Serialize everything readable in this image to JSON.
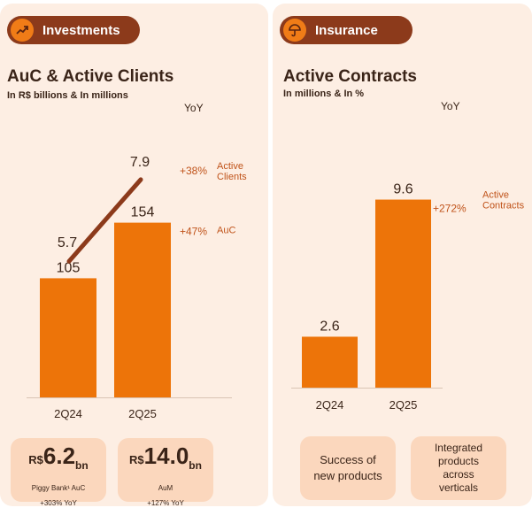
{
  "investments": {
    "badge_label": "Investments",
    "badge_icon": "trending-up-icon",
    "title": "AuC & Active Clients",
    "subtitle": "In R$ billions & In millions",
    "yoy_header": "YoY",
    "cards": [
      {
        "prefix": "R$",
        "value": "6.2",
        "unit": "bn",
        "label": "Piggy Bank¹ AuC",
        "change": "+303% YoY"
      },
      {
        "prefix": "R$",
        "value": "14.0",
        "unit": "bn",
        "label": "AuM",
        "change": "+127% YoY"
      }
    ]
  },
  "insurance": {
    "badge_label": "Insurance",
    "badge_icon": "umbrella-icon",
    "title": "Active Contracts",
    "subtitle": "In millions & In %",
    "yoy_header": "YoY",
    "cards": [
      {
        "text": "Success of new products"
      },
      {
        "text": "Integrated products across verticals"
      }
    ]
  },
  "colors": {
    "bar": "#ed7409",
    "line": "#8c3a1b",
    "pill": "#8c3a1b",
    "panel": "#fdeee3",
    "card": "#fbd7bd",
    "accent_text": "#c0531a"
  },
  "chart_data": [
    {
      "type": "bar",
      "title": "AuC & Active Clients",
      "subtitle": "In R$ billions & In millions",
      "categories": [
        "2Q24",
        "2Q25"
      ],
      "series": [
        {
          "name": "AuC",
          "kind": "bar",
          "values": [
            105,
            154
          ],
          "value_labels": [
            "105",
            "154"
          ],
          "yoy": "+47%"
        },
        {
          "name": "Active Clients",
          "kind": "line",
          "values": [
            5.7,
            7.9
          ],
          "value_labels": [
            "5.7",
            "7.9"
          ],
          "yoy": "+38%"
        }
      ],
      "bar_ylim": [
        0,
        220
      ],
      "line_ylim": [
        2.05,
        8.7
      ]
    },
    {
      "type": "bar",
      "title": "Active Contracts",
      "subtitle": "In millions & In %",
      "categories": [
        "2Q24",
        "2Q25"
      ],
      "series": [
        {
          "name": "Active Contracts",
          "kind": "bar",
          "values": [
            2.6,
            9.6
          ],
          "value_labels": [
            "2.6",
            "9.6"
          ],
          "yoy": "+272%"
        }
      ],
      "bar_ylim": [
        0,
        12.2
      ]
    }
  ]
}
